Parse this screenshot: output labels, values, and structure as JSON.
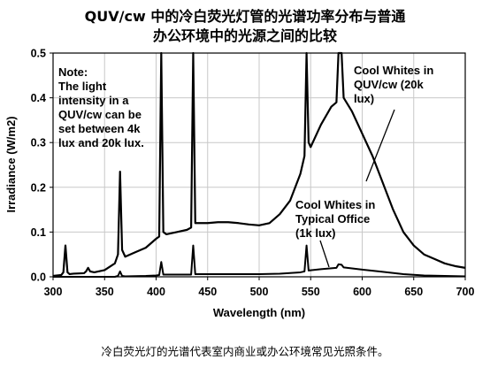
{
  "chart_data": {
    "type": "line",
    "title_line1": "QUV/cw 中的冷白荧光灯管的光谱功率分布与普通",
    "title_line2": "办公环境中的光源之间的比较",
    "xlabel": "Wavelength (nm)",
    "ylabel": "Irradiance (W/m2)",
    "xlim": [
      300,
      700
    ],
    "ylim": [
      0,
      0.5
    ],
    "x_ticks": [
      "300",
      "350",
      "400",
      "450",
      "500",
      "550",
      "600",
      "650",
      "700"
    ],
    "y_ticks": [
      "0.0",
      "0.1",
      "0.2",
      "0.3",
      "0.4",
      "0.5"
    ],
    "grid": true,
    "note": [
      "Note:",
      "The light",
      "intensity in a",
      "QUV/cw can be",
      "set between 4k",
      "lux and 20k lux."
    ],
    "series": [
      {
        "name": "Cool Whites in QUV/cw (20k lux)",
        "label_lines": [
          "Cool Whites in",
          "QUV/cw (20k",
          "lux)"
        ],
        "points": [
          [
            300,
            0.002
          ],
          [
            308,
            0.004
          ],
          [
            310,
            0.01
          ],
          [
            312,
            0.07
          ],
          [
            314,
            0.01
          ],
          [
            316,
            0.006
          ],
          [
            320,
            0.007
          ],
          [
            330,
            0.008
          ],
          [
            332,
            0.012
          ],
          [
            334,
            0.02
          ],
          [
            336,
            0.012
          ],
          [
            340,
            0.01
          ],
          [
            350,
            0.015
          ],
          [
            360,
            0.03
          ],
          [
            363,
            0.05
          ],
          [
            365,
            0.235
          ],
          [
            367,
            0.06
          ],
          [
            370,
            0.045
          ],
          [
            380,
            0.055
          ],
          [
            390,
            0.065
          ],
          [
            400,
            0.085
          ],
          [
            403,
            0.09
          ],
          [
            405,
            0.5
          ],
          [
            407,
            0.1
          ],
          [
            410,
            0.095
          ],
          [
            420,
            0.1
          ],
          [
            430,
            0.105
          ],
          [
            434,
            0.11
          ],
          [
            436,
            0.5
          ],
          [
            438,
            0.12
          ],
          [
            450,
            0.12
          ],
          [
            460,
            0.122
          ],
          [
            470,
            0.122
          ],
          [
            480,
            0.12
          ],
          [
            490,
            0.117
          ],
          [
            500,
            0.115
          ],
          [
            510,
            0.12
          ],
          [
            520,
            0.14
          ],
          [
            530,
            0.17
          ],
          [
            540,
            0.23
          ],
          [
            544,
            0.27
          ],
          [
            546,
            0.5
          ],
          [
            548,
            0.3
          ],
          [
            550,
            0.29
          ],
          [
            560,
            0.34
          ],
          [
            570,
            0.38
          ],
          [
            575,
            0.39
          ],
          [
            577,
            0.5
          ],
          [
            580,
            0.5
          ],
          [
            582,
            0.4
          ],
          [
            590,
            0.37
          ],
          [
            600,
            0.32
          ],
          [
            610,
            0.27
          ],
          [
            620,
            0.21
          ],
          [
            630,
            0.15
          ],
          [
            640,
            0.1
          ],
          [
            650,
            0.07
          ],
          [
            660,
            0.05
          ],
          [
            670,
            0.04
          ],
          [
            680,
            0.03
          ],
          [
            690,
            0.024
          ],
          [
            700,
            0.02
          ]
        ]
      },
      {
        "name": "Cool Whites in Typical Office (1k lux)",
        "label_lines": [
          "Cool Whites in",
          "Typical Office",
          "(1k lux)"
        ],
        "points": [
          [
            300,
            0.0
          ],
          [
            360,
            0.0
          ],
          [
            363,
            0.002
          ],
          [
            365,
            0.012
          ],
          [
            367,
            0.002
          ],
          [
            370,
            0.001
          ],
          [
            390,
            0.002
          ],
          [
            400,
            0.003
          ],
          [
            403,
            0.004
          ],
          [
            405,
            0.033
          ],
          [
            407,
            0.005
          ],
          [
            420,
            0.005
          ],
          [
            434,
            0.005
          ],
          [
            436,
            0.07
          ],
          [
            438,
            0.006
          ],
          [
            450,
            0.006
          ],
          [
            480,
            0.006
          ],
          [
            500,
            0.006
          ],
          [
            520,
            0.007
          ],
          [
            540,
            0.01
          ],
          [
            544,
            0.012
          ],
          [
            546,
            0.07
          ],
          [
            548,
            0.014
          ],
          [
            560,
            0.017
          ],
          [
            570,
            0.019
          ],
          [
            575,
            0.02
          ],
          [
            577,
            0.028
          ],
          [
            580,
            0.027
          ],
          [
            582,
            0.021
          ],
          [
            600,
            0.016
          ],
          [
            620,
            0.011
          ],
          [
            640,
            0.006
          ],
          [
            660,
            0.003
          ],
          [
            680,
            0.002
          ],
          [
            700,
            0.001
          ]
        ]
      }
    ]
  },
  "caption": "冷白荧光灯的光谱代表室内商业或办公环境常见光照条件。"
}
